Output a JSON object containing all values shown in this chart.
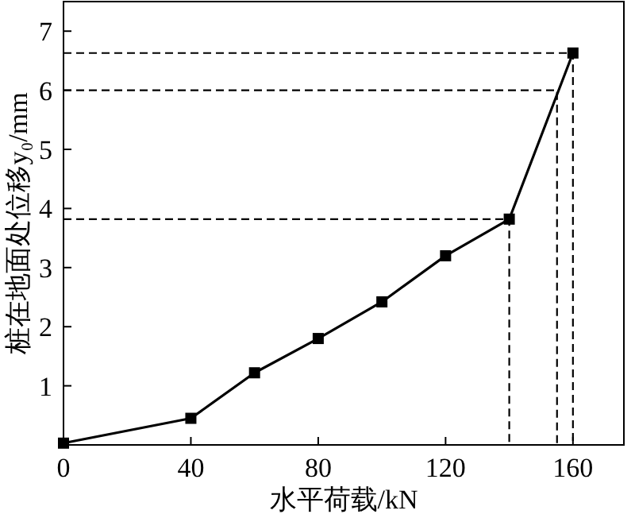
{
  "chart_data": {
    "type": "line",
    "xlabel": "水平荷载/kN",
    "ylabel": "桩在地面处位移y₀/mm",
    "xlim": [
      0,
      176
    ],
    "ylim": [
      0,
      7.5
    ],
    "xticks": [
      0,
      40,
      80,
      120,
      160
    ],
    "yticks": [
      1,
      2,
      3,
      4,
      5,
      6,
      7
    ],
    "grid": false,
    "series": [
      {
        "color": "#000000",
        "marker": "square",
        "line_style": "solid",
        "x": [
          0,
          40,
          60,
          80,
          100,
          120,
          140,
          160
        ],
        "values": [
          0.03,
          0.45,
          1.22,
          1.8,
          2.42,
          3.2,
          3.82,
          6.63
        ]
      },
      {
        "color": "#000000",
        "marker": "none",
        "line_style": "dashed",
        "x": [
          0,
          140,
          140
        ],
        "values": [
          3.82,
          3.82,
          0
        ]
      },
      {
        "color": "#000000",
        "marker": "none",
        "line_style": "dashed",
        "x": [
          0,
          155,
          155
        ],
        "values": [
          6.0,
          6.0,
          0
        ]
      },
      {
        "color": "#000000",
        "marker": "none",
        "line_style": "dashed",
        "x": [
          0,
          160,
          160
        ],
        "values": [
          6.63,
          6.63,
          0
        ]
      }
    ]
  }
}
